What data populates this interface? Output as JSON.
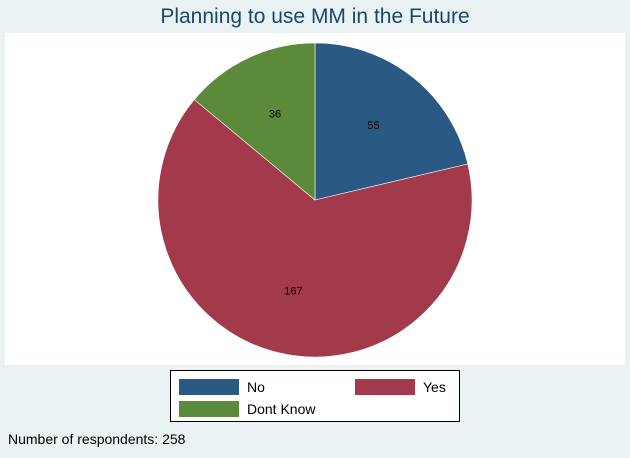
{
  "chart_data": {
    "type": "pie",
    "title": "Planning to use MM in the Future",
    "slices": [
      {
        "label": "No",
        "value": 55,
        "color": "#2a5a83"
      },
      {
        "label": "Yes",
        "value": 167,
        "color": "#a33a4b"
      },
      {
        "label": "Dont Know",
        "value": 36,
        "color": "#5b8a3b"
      }
    ],
    "start_angle_deg": 0,
    "direction": "clockwise",
    "legend_placement": "bottom",
    "note": "Number of respondents: 258"
  }
}
